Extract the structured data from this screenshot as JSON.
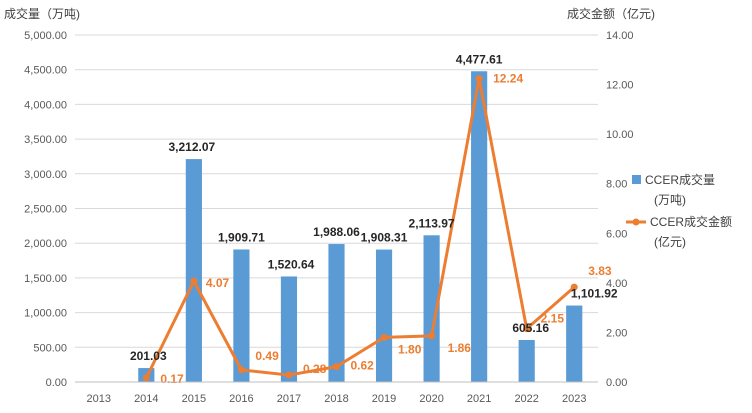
{
  "chart_data": {
    "type": "bar",
    "categories": [
      "2013",
      "2014",
      "2015",
      "2016",
      "2017",
      "2018",
      "2019",
      "2020",
      "2021",
      "2022",
      "2023"
    ],
    "series": [
      {
        "name": "CCER成交量（万吨)",
        "type": "bar",
        "axis": "left",
        "color": "#5b9bd5",
        "values": [
          null,
          201.03,
          3212.07,
          1909.71,
          1520.64,
          1988.06,
          1908.31,
          2113.97,
          4477.61,
          605.16,
          1101.92
        ],
        "labels": [
          "",
          "201.03",
          "3,212.07",
          "1,909.71",
          "1,520.64",
          "1,988.06",
          "1,908.31",
          "2,113.97",
          "4,477.61",
          "605.16",
          "1,101.92"
        ]
      },
      {
        "name": "CCER成交金额（亿元)",
        "type": "line",
        "axis": "right",
        "color": "#ed7d31",
        "values": [
          null,
          0.17,
          4.07,
          0.49,
          0.28,
          0.62,
          1.8,
          1.86,
          12.24,
          2.15,
          3.83
        ],
        "labels": [
          "",
          "0.17",
          "4.07",
          "0.49",
          "0.28",
          "0.62",
          "1.80",
          "1.86",
          "12.24",
          "2.15",
          "3.83"
        ]
      }
    ],
    "ylabel": "成交量（万吨)",
    "y2label": "成交金额（亿元)",
    "ylim": [
      0,
      5000
    ],
    "y2lim": [
      0,
      14
    ],
    "yticks": [
      "0.00",
      "500.00",
      "1,000.00",
      "1,500.00",
      "2,000.00",
      "2,500.00",
      "3,000.00",
      "3,500.00",
      "4,000.00",
      "4,500.00",
      "5,000.00"
    ],
    "y2ticks": [
      "0.00",
      "2.00",
      "4.00",
      "6.00",
      "8.00",
      "10.00",
      "12.00",
      "14.00"
    ],
    "grid": true,
    "legend_position": "right",
    "legend": [
      {
        "line1": "CCER成交量",
        "line2": "(万吨)"
      },
      {
        "line1": "CCER成交金额",
        "line2": "(亿元)"
      }
    ]
  }
}
